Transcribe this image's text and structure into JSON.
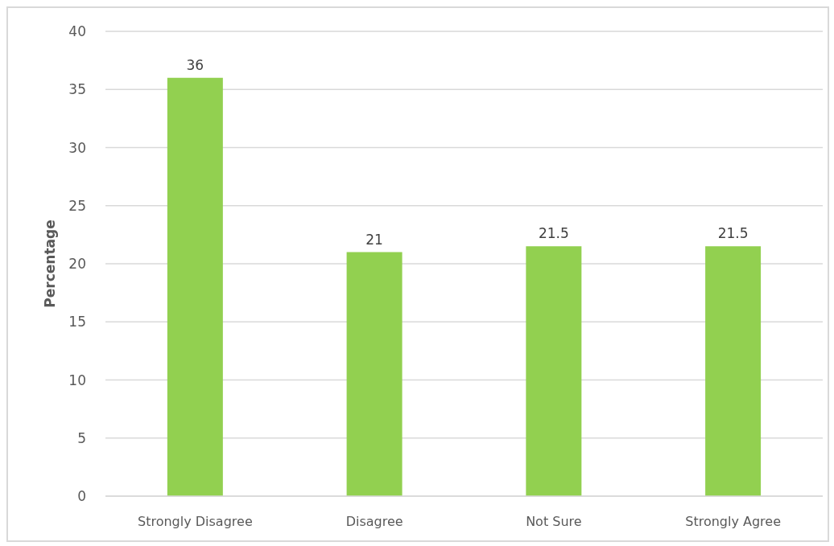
{
  "chart_data": {
    "type": "bar",
    "ylabel": "Percentage",
    "categories": [
      "Strongly Disagree",
      "Disagree",
      "Not Sure",
      "Strongly Agree"
    ],
    "values": [
      36,
      21,
      21.5,
      21.5
    ],
    "color": "#92d050",
    "ylim": [
      0,
      40
    ],
    "yticks": [
      0,
      5,
      10,
      15,
      20,
      25,
      30,
      35,
      40
    ],
    "grid": "y",
    "data_labels": true
  }
}
